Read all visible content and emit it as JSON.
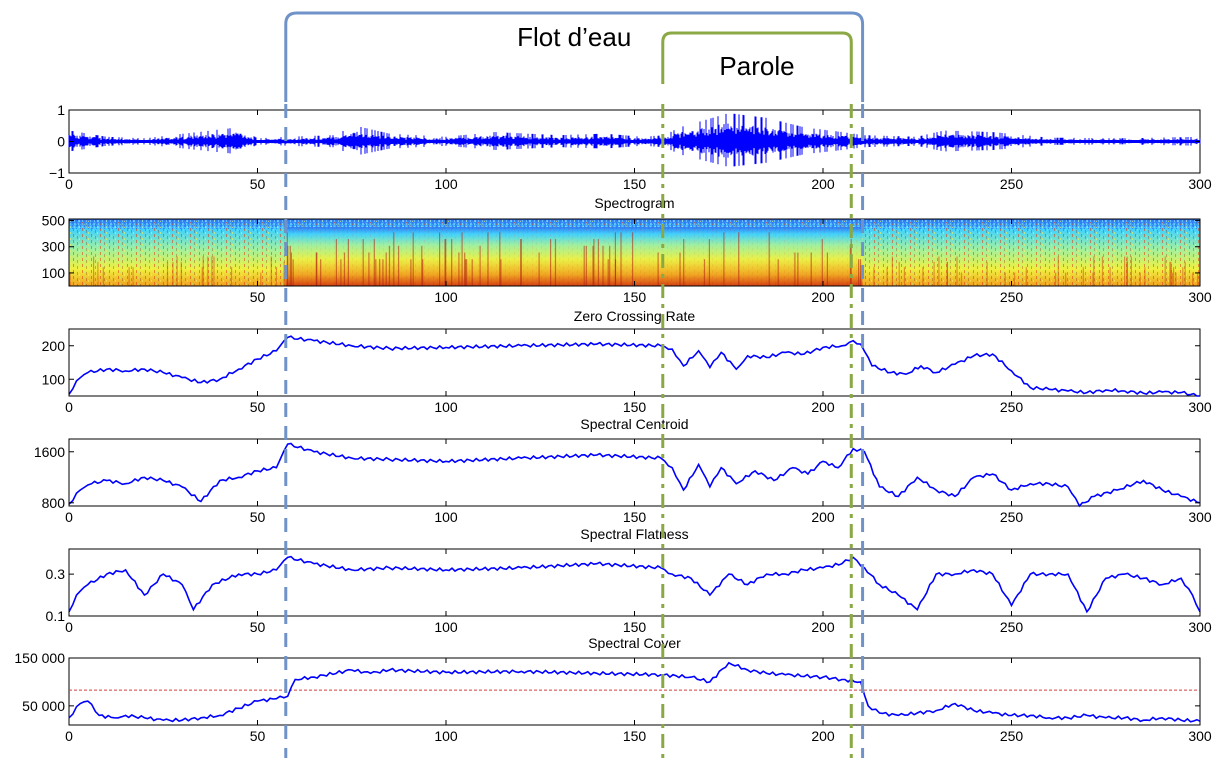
{
  "annotations": {
    "outer_label": "Flot d’eau",
    "inner_label": "Parole",
    "outer_range": [
      57.5,
      210.5
    ],
    "inner_range": [
      157.5,
      207.5
    ],
    "outer_color": "#6f93c9",
    "inner_color": "#8aa844"
  },
  "chart_data": [
    {
      "type": "line",
      "title": "",
      "xlim": [
        0,
        300
      ],
      "ylim": [
        -1,
        1
      ],
      "xticks": [
        0,
        50,
        100,
        150,
        200,
        250,
        300
      ],
      "yticks": [
        -1,
        0,
        1
      ],
      "ytick_labels": [
        "−1",
        "0",
        "1"
      ],
      "color": "#0000ff",
      "series": [
        {
          "kind": "waveform",
          "amplitude_envelope": [
            [
              0,
              0.35
            ],
            [
              10,
              0.15
            ],
            [
              20,
              0.1
            ],
            [
              27,
              0.2
            ],
            [
              45,
              0.45
            ],
            [
              50,
              0.1
            ],
            [
              58,
              0.15
            ],
            [
              70,
              0.2
            ],
            [
              76,
              0.5
            ],
            [
              85,
              0.25
            ],
            [
              100,
              0.15
            ],
            [
              113,
              0.3
            ],
            [
              130,
              0.2
            ],
            [
              142,
              0.25
            ],
            [
              152,
              0.15
            ],
            [
              158,
              0.2
            ],
            [
              162,
              0.45
            ],
            [
              175,
              0.9
            ],
            [
              185,
              0.75
            ],
            [
              195,
              0.45
            ],
            [
              205,
              0.3
            ],
            [
              211,
              0.2
            ],
            [
              225,
              0.15
            ],
            [
              232,
              0.35
            ],
            [
              245,
              0.3
            ],
            [
              260,
              0.12
            ],
            [
              280,
              0.1
            ],
            [
              300,
              0.15
            ]
          ]
        }
      ]
    },
    {
      "type": "heatmap",
      "title": "Spectrogram",
      "xlim": [
        0,
        300
      ],
      "ylim": [
        0,
        512
      ],
      "xticks": [
        50,
        100,
        150,
        200,
        250,
        300
      ],
      "yticks": [
        100,
        300,
        500
      ],
      "colormap": [
        "#2f6ff0",
        "#40d0ff",
        "#a0f0a0",
        "#f0f040",
        "#f0a020",
        "#d03010"
      ]
    },
    {
      "type": "line",
      "title": "Zero Crossing Rate",
      "xlim": [
        0,
        300
      ],
      "ylim": [
        50,
        250
      ],
      "xticks": [
        0,
        50,
        100,
        150,
        200,
        250,
        300
      ],
      "yticks": [
        100,
        200
      ],
      "color": "#0000ff",
      "x": [
        0,
        2,
        5,
        10,
        15,
        20,
        25,
        30,
        35,
        40,
        45,
        50,
        55,
        58,
        65,
        75,
        85,
        100,
        120,
        140,
        157,
        160,
        163,
        167,
        170,
        173,
        177,
        180,
        185,
        190,
        195,
        200,
        205,
        208,
        210,
        213,
        218,
        222,
        226,
        230,
        235,
        240,
        245,
        250,
        255,
        260,
        265,
        270,
        275,
        280,
        285,
        290,
        295,
        300
      ],
      "y": [
        55,
        95,
        120,
        130,
        125,
        130,
        120,
        105,
        90,
        100,
        130,
        160,
        185,
        225,
        215,
        200,
        192,
        195,
        200,
        205,
        200,
        190,
        140,
        185,
        135,
        180,
        130,
        170,
        165,
        180,
        175,
        195,
        200,
        215,
        205,
        140,
        120,
        115,
        140,
        120,
        145,
        170,
        175,
        125,
        75,
        70,
        65,
        60,
        68,
        65,
        58,
        62,
        60,
        50
      ]
    },
    {
      "type": "line",
      "title": "Spectral Centroid",
      "xlim": [
        0,
        300
      ],
      "ylim": [
        750,
        1800
      ],
      "xticks": [
        0,
        50,
        100,
        150,
        200,
        250,
        300
      ],
      "yticks": [
        800,
        1600
      ],
      "color": "#0000ff",
      "x": [
        0,
        3,
        6,
        10,
        15,
        20,
        25,
        30,
        35,
        40,
        45,
        50,
        55,
        58,
        65,
        75,
        85,
        100,
        120,
        140,
        157,
        160,
        163,
        167,
        170,
        173,
        177,
        182,
        187,
        192,
        196,
        200,
        204,
        208,
        211,
        215,
        220,
        225,
        230,
        235,
        240,
        245,
        250,
        255,
        260,
        265,
        268,
        272,
        278,
        285,
        290,
        295,
        300
      ],
      "y": [
        780,
        1000,
        1100,
        1150,
        1100,
        1200,
        1150,
        1050,
        820,
        1150,
        1200,
        1300,
        1350,
        1720,
        1600,
        1500,
        1480,
        1450,
        1500,
        1550,
        1500,
        1350,
        1000,
        1400,
        1050,
        1350,
        1100,
        1300,
        1150,
        1350,
        1250,
        1450,
        1350,
        1650,
        1600,
        1050,
        900,
        1200,
        1000,
        900,
        1200,
        1250,
        1000,
        1100,
        1100,
        1050,
        750,
        900,
        1000,
        1150,
        1000,
        900,
        800
      ]
    },
    {
      "type": "line",
      "title": "Spectral Flatness",
      "xlim": [
        0,
        300
      ],
      "ylim": [
        0.1,
        0.42
      ],
      "xticks": [
        0,
        50,
        100,
        150,
        200,
        250,
        300
      ],
      "yticks": [
        0.1,
        0.3
      ],
      "color": "#0000ff",
      "x": [
        0,
        2,
        5,
        10,
        15,
        20,
        25,
        30,
        33,
        38,
        45,
        50,
        55,
        58,
        65,
        75,
        85,
        100,
        120,
        140,
        157,
        160,
        165,
        170,
        175,
        180,
        185,
        190,
        195,
        200,
        205,
        208,
        211,
        215,
        220,
        225,
        230,
        235,
        240,
        245,
        250,
        255,
        260,
        265,
        270,
        275,
        280,
        285,
        290,
        295,
        298,
        300
      ],
      "y": [
        0.12,
        0.2,
        0.25,
        0.3,
        0.32,
        0.2,
        0.3,
        0.25,
        0.13,
        0.25,
        0.3,
        0.3,
        0.32,
        0.38,
        0.35,
        0.32,
        0.33,
        0.32,
        0.33,
        0.35,
        0.33,
        0.3,
        0.28,
        0.2,
        0.3,
        0.25,
        0.3,
        0.3,
        0.32,
        0.33,
        0.35,
        0.38,
        0.33,
        0.25,
        0.2,
        0.13,
        0.3,
        0.3,
        0.32,
        0.3,
        0.15,
        0.3,
        0.3,
        0.3,
        0.12,
        0.28,
        0.3,
        0.28,
        0.25,
        0.28,
        0.2,
        0.12
      ]
    },
    {
      "type": "line",
      "title": "Spectral Cover",
      "xlim": [
        0,
        300
      ],
      "ylim": [
        10000,
        150000
      ],
      "xticks": [
        0,
        50,
        100,
        150,
        200,
        250,
        300
      ],
      "yticks": [
        50000,
        150000
      ],
      "ytick_labels": [
        "50 000",
        "150 000"
      ],
      "color": "#0000ff",
      "threshold": {
        "value": 83000,
        "color": "#d04040"
      },
      "x": [
        0,
        3,
        5,
        8,
        12,
        15,
        20,
        25,
        30,
        35,
        40,
        45,
        50,
        55,
        58,
        60,
        65,
        75,
        80,
        85,
        100,
        120,
        140,
        157,
        165,
        170,
        175,
        180,
        185,
        190,
        200,
        205,
        210,
        212,
        215,
        220,
        225,
        230,
        235,
        240,
        245,
        250,
        255,
        260,
        265,
        270,
        275,
        280,
        285,
        290,
        295,
        300
      ],
      "y": [
        25000,
        55000,
        60000,
        30000,
        25000,
        30000,
        25000,
        20000,
        20000,
        25000,
        30000,
        45000,
        60000,
        65000,
        70000,
        105000,
        110000,
        125000,
        118000,
        125000,
        120000,
        122000,
        118000,
        115000,
        110000,
        100000,
        140000,
        125000,
        118000,
        115000,
        110000,
        105000,
        100000,
        50000,
        35000,
        30000,
        35000,
        40000,
        55000,
        40000,
        35000,
        30000,
        30000,
        25000,
        25000,
        30000,
        25000,
        25000,
        20000,
        25000,
        20000,
        18000
      ]
    }
  ]
}
